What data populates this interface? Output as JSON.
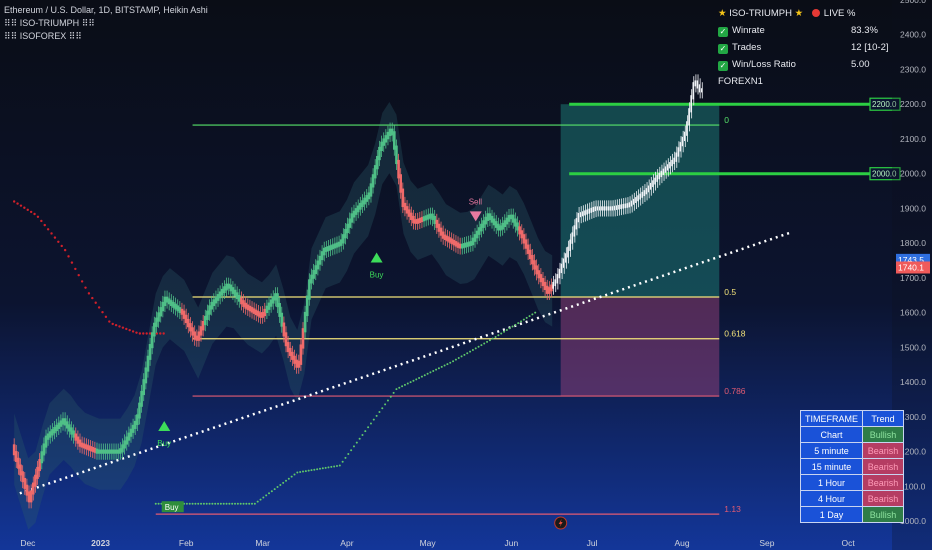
{
  "legend": {
    "symbol_line": "Ethereum / U.S. Dollar, 1D, BITSTAMP, Heikin Ashi",
    "indicator_1": "ISO-TRIUMPH",
    "indicator_2": "ISOFOREX"
  },
  "stats_panel": {
    "title": "ISO-TRIUMPH",
    "live_label": "LIVE %",
    "rows": [
      {
        "label": "Winrate",
        "value": "83.3%"
      },
      {
        "label": "Trades",
        "value": "12 [10-2]"
      },
      {
        "label": "Win/Loss Ratio",
        "value": "5.00"
      }
    ],
    "footer": "FOREXN1"
  },
  "timeframe_table": {
    "headers": [
      "TIMEFRAME",
      "Trend"
    ],
    "rows": [
      {
        "tf": "Chart",
        "trend": "Bullish"
      },
      {
        "tf": "5 minute",
        "trend": "Bearish"
      },
      {
        "tf": "15 minute",
        "trend": "Bearish"
      },
      {
        "tf": "1 Hour",
        "trend": "Bearish"
      },
      {
        "tf": "4 Hour",
        "trend": "Bearish"
      },
      {
        "tf": "1 Day",
        "trend": "Bullish"
      }
    ]
  },
  "colors": {
    "up_candle": "#4fbf87",
    "down_candle": "#ef6a6a",
    "fib_green": "#57e36a",
    "fib_yellow": "#f3e37a",
    "fib_red": "#e15b73",
    "level_box_green": "#2ccf43",
    "price_red": "#f05a5a",
    "price_blue": "#2f6fe0"
  },
  "chart_data": {
    "type": "candlestick",
    "y_range": [
      960,
      2500
    ],
    "y_ticks": [
      1000,
      1100,
      1200,
      1300,
      1400,
      1500,
      1600,
      1700,
      1800,
      1900,
      2000,
      2100,
      2200,
      2300,
      2400,
      2500
    ],
    "y_tick_labels": [
      "1000.0",
      "1100.0",
      "1200.0",
      "1300.0",
      "1400.0",
      "1500.0",
      "1600.0",
      "1700.0",
      "1800.0",
      "1900.0",
      "2000.0",
      "2100.0",
      "2200.0",
      "2300.0",
      "2400.0",
      "2500.0"
    ],
    "x_ticks": [
      {
        "label": "Dec",
        "t": 0.5
      },
      {
        "label": "2023",
        "t": 3.0,
        "bold": true
      },
      {
        "label": "Feb",
        "t": 6.1
      },
      {
        "label": "Mar",
        "t": 8.8
      },
      {
        "label": "Apr",
        "t": 11.8
      },
      {
        "label": "May",
        "t": 14.6
      },
      {
        "label": "Jun",
        "t": 17.6
      },
      {
        "label": "Jul",
        "t": 20.5
      },
      {
        "label": "Aug",
        "t": 23.6
      },
      {
        "label": "Sep",
        "t": 26.6
      },
      {
        "label": "Oct",
        "t": 29.5
      }
    ],
    "price_path": [
      [
        0,
        1215
      ],
      [
        0.6,
        1060
      ],
      [
        1.2,
        1240
      ],
      [
        1.8,
        1290
      ],
      [
        2.4,
        1220
      ],
      [
        3.0,
        1200
      ],
      [
        3.8,
        1200
      ],
      [
        4.4,
        1290
      ],
      [
        5.0,
        1560
      ],
      [
        5.4,
        1640
      ],
      [
        6.0,
        1600
      ],
      [
        6.5,
        1520
      ],
      [
        7.0,
        1620
      ],
      [
        7.6,
        1680
      ],
      [
        8.2,
        1620
      ],
      [
        8.8,
        1590
      ],
      [
        9.3,
        1650
      ],
      [
        9.7,
        1500
      ],
      [
        10.1,
        1440
      ],
      [
        10.5,
        1690
      ],
      [
        11.0,
        1780
      ],
      [
        11.6,
        1800
      ],
      [
        12.0,
        1880
      ],
      [
        12.6,
        1940
      ],
      [
        13.0,
        2080
      ],
      [
        13.4,
        2130
      ],
      [
        13.8,
        1910
      ],
      [
        14.2,
        1860
      ],
      [
        14.8,
        1880
      ],
      [
        15.2,
        1820
      ],
      [
        15.8,
        1790
      ],
      [
        16.2,
        1800
      ],
      [
        16.8,
        1880
      ],
      [
        17.2,
        1840
      ],
      [
        17.6,
        1880
      ],
      [
        18.0,
        1820
      ],
      [
        18.5,
        1720
      ],
      [
        18.9,
        1660
      ],
      [
        19.2,
        1690
      ],
      [
        19.6,
        1770
      ],
      [
        20.0,
        1880
      ],
      [
        20.6,
        1900
      ],
      [
        21.2,
        1900
      ],
      [
        21.8,
        1910
      ],
      [
        22.4,
        1950
      ],
      [
        22.8,
        1990
      ],
      [
        23.4,
        2040
      ],
      [
        23.8,
        2120
      ],
      [
        24.1,
        2270
      ],
      [
        24.3,
        2240
      ]
    ],
    "down_ranges": [
      [
        0,
        0.9
      ],
      [
        2.1,
        2.9
      ],
      [
        5.9,
        6.7
      ],
      [
        8.0,
        8.9
      ],
      [
        9.5,
        10.2
      ],
      [
        13.5,
        14.4
      ],
      [
        14.9,
        15.8
      ],
      [
        17.8,
        19.0
      ]
    ],
    "heikin_ashi_end": 19.0,
    "trendline": {
      "points": [
        [
          0,
          1120
        ],
        [
          27.0,
          1800
        ]
      ],
      "extends": [
        [
          0.2,
          1080
        ],
        [
          27.4,
          1830
        ]
      ]
    },
    "red_trail": [
      [
        0,
        1920
      ],
      [
        0.8,
        1880
      ],
      [
        1.8,
        1780
      ],
      [
        2.6,
        1660
      ],
      [
        3.4,
        1570
      ],
      [
        4.4,
        1540
      ],
      [
        5.3,
        1540
      ]
    ],
    "green_trail": [
      [
        5.0,
        1050
      ],
      [
        8.5,
        1050
      ],
      [
        10.0,
        1140
      ],
      [
        11.5,
        1160
      ],
      [
        13.5,
        1380
      ],
      [
        15.5,
        1460
      ],
      [
        17.0,
        1530
      ],
      [
        18.4,
        1600
      ]
    ],
    "fib_levels": [
      {
        "label": "0",
        "price": 2140,
        "t_start": 6.3,
        "t_end": 24.9,
        "color": "#57e36a"
      },
      {
        "label": "0.5",
        "price": 1645,
        "t_start": 6.3,
        "t_end": 24.9,
        "color": "#f3e37a"
      },
      {
        "label": "0.618",
        "price": 1525,
        "t_start": 6.3,
        "t_end": 24.9,
        "color": "#f3e37a"
      },
      {
        "label": "0.786",
        "price": 1360,
        "t_start": 6.3,
        "t_end": 24.9,
        "color": "#e15b73"
      },
      {
        "label": "1.13",
        "price": 1020,
        "t_start": 5.0,
        "t_end": 24.9,
        "color": "#e15b73"
      }
    ],
    "key_levels": [
      {
        "label": "2200.0",
        "price": 2200,
        "t_start": 19.6
      },
      {
        "label": "2000.0",
        "price": 2000,
        "t_start": 19.6
      }
    ],
    "position_box": {
      "t_start": 19.3,
      "t_end": 24.9,
      "entry": 1645,
      "target": 2200,
      "stop": 1360
    },
    "signals": [
      {
        "type": "buy",
        "label": "Buy",
        "t": 5.3,
        "price": 1265
      },
      {
        "type": "buy",
        "label": "Buy",
        "t": 12.8,
        "price": 1750
      },
      {
        "type": "sell",
        "label": "Sell",
        "t": 16.3,
        "price": 1880
      },
      {
        "type": "buy",
        "label": "Buy",
        "t": 5.6,
        "price": 1040,
        "boxed": true
      }
    ],
    "last_price_tags": [
      {
        "label": "1743.5",
        "price": 1752,
        "color": "#2f6fe0"
      },
      {
        "label": "1740.1",
        "price": 1730,
        "color": "#f05a5a"
      }
    ],
    "t_range": [
      -0.5,
      31.0
    ]
  }
}
